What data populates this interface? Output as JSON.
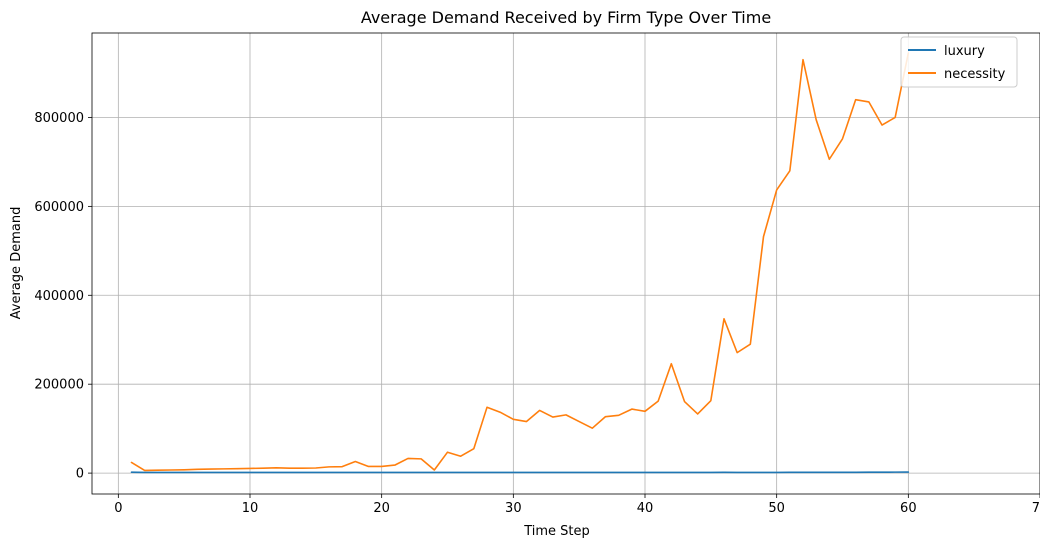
{
  "chart_data": {
    "type": "line",
    "title": "Average Demand Received by Firm Type Over Time",
    "xlabel": "Time Step",
    "ylabel": "Average Demand",
    "xlim": [
      -2,
      70
    ],
    "ylim": [
      -47000,
      990000
    ],
    "xticks": [
      0,
      10,
      20,
      30,
      40,
      50,
      60,
      70
    ],
    "yticks": [
      0,
      200000,
      400000,
      600000,
      800000
    ],
    "grid": true,
    "legend_position": "top-right",
    "x": [
      1,
      2,
      3,
      4,
      5,
      6,
      7,
      8,
      9,
      10,
      11,
      12,
      13,
      14,
      15,
      16,
      17,
      18,
      19,
      20,
      21,
      22,
      23,
      24,
      25,
      26,
      27,
      28,
      29,
      30,
      31,
      32,
      33,
      34,
      35,
      36,
      37,
      38,
      39,
      40,
      41,
      42,
      43,
      44,
      45,
      46,
      47,
      48,
      49,
      50,
      51,
      52,
      53,
      54,
      55,
      56,
      57,
      58,
      59,
      60
    ],
    "series": [
      {
        "name": "luxury",
        "color": "#1f77b4",
        "values": [
          2000,
          1500,
          1500,
          1500,
          1500,
          1500,
          1500,
          1500,
          1500,
          1500,
          1500,
          1500,
          1500,
          1500,
          1500,
          1500,
          1500,
          1500,
          1500,
          1500,
          1500,
          1500,
          1500,
          1500,
          1500,
          1500,
          1500,
          1500,
          1500,
          1500,
          1500,
          1500,
          1500,
          1500,
          1500,
          1500,
          1500,
          1500,
          1500,
          1500,
          1500,
          1500,
          1500,
          1500,
          1500,
          1800,
          1500,
          1500,
          1500,
          1600,
          1700,
          1800,
          1800,
          1800,
          1800,
          1800,
          2000,
          2100,
          2200,
          2300
        ]
      },
      {
        "name": "necessity",
        "color": "#ff7f0e",
        "values": [
          24000,
          6000,
          6500,
          7000,
          7500,
          8500,
          9000,
          9500,
          10000,
          10500,
          11000,
          12000,
          11000,
          11000,
          11500,
          14000,
          14500,
          26000,
          15000,
          15000,
          18000,
          33000,
          32000,
          7000,
          47000,
          38000,
          55000,
          148000,
          137000,
          121000,
          116000,
          141000,
          126000,
          131000,
          116000,
          101000,
          127000,
          130000,
          144000,
          139000,
          162000,
          246000,
          161000,
          133000,
          163000,
          347000,
          271000,
          290000,
          532000,
          637000,
          680000,
          930000,
          795000,
          706000,
          752000,
          840000,
          835000,
          783000,
          800000,
          945000
        ]
      }
    ]
  }
}
